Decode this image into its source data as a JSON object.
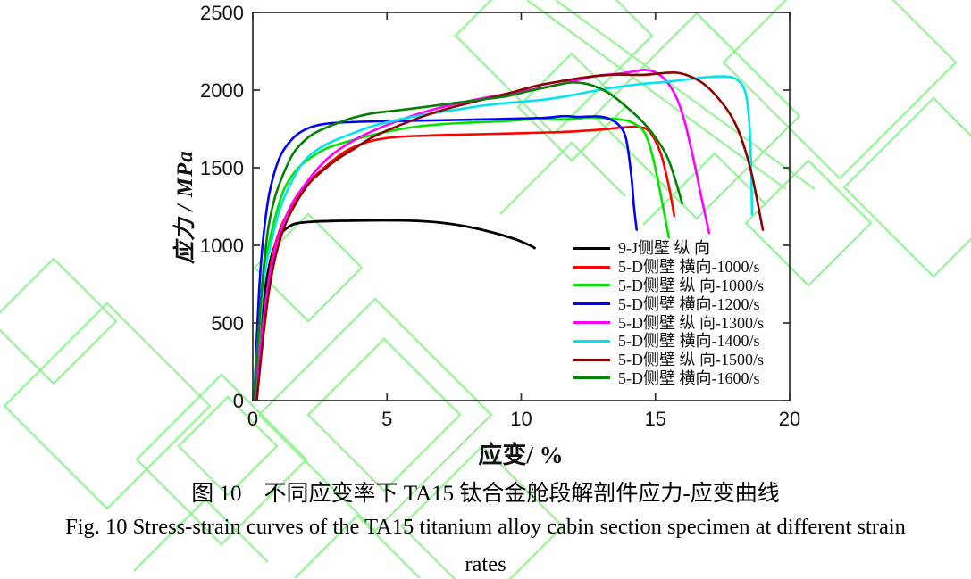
{
  "figure": {
    "caption_zh": "图 10　不同应变率下 TA15 钛合金舱段解剖件应力-应变曲线",
    "caption_en_lines": [
      "Fig. 10 Stress-strain curves of the TA15 titanium alloy cabin section specimen at different strain",
      "rates"
    ]
  },
  "watermark": {
    "color": "#8ff08f"
  },
  "chart_data": {
    "type": "line",
    "title": "",
    "xlabel": "应变/ %",
    "ylabel": "应力 / MPa",
    "xlim": [
      0,
      20
    ],
    "ylim": [
      0,
      2500
    ],
    "x_ticks": [
      "0",
      "5",
      "10",
      "15",
      "20"
    ],
    "y_ticks": [
      "0",
      "500",
      "1000",
      "1500",
      "2000",
      "2500"
    ],
    "grid": false,
    "legend_position": "inside-lower-right",
    "series": [
      {
        "name": "9-J侧壁 纵 向",
        "color": "#000000",
        "points": [
          [
            0.1,
            0
          ],
          [
            0.2,
            180
          ],
          [
            0.35,
            520
          ],
          [
            0.5,
            760
          ],
          [
            0.65,
            900
          ],
          [
            0.85,
            1010
          ],
          [
            1.05,
            1075
          ],
          [
            1.3,
            1115
          ],
          [
            1.6,
            1140
          ],
          [
            2.2,
            1152
          ],
          [
            3,
            1157
          ],
          [
            4,
            1160
          ],
          [
            5,
            1161
          ],
          [
            6,
            1158
          ],
          [
            7,
            1146
          ],
          [
            8,
            1120
          ],
          [
            9,
            1080
          ],
          [
            9.8,
            1038
          ],
          [
            10.3,
            1002
          ],
          [
            10.5,
            983
          ]
        ]
      },
      {
        "name": "5-D侧壁 横向-1000/s",
        "color": "#ff0000",
        "points": [
          [
            0.1,
            0
          ],
          [
            0.3,
            380
          ],
          [
            0.55,
            720
          ],
          [
            0.75,
            950
          ],
          [
            1.1,
            1140
          ],
          [
            1.5,
            1260
          ],
          [
            1.9,
            1370
          ],
          [
            2.3,
            1445
          ],
          [
            2.8,
            1520
          ],
          [
            3.4,
            1600
          ],
          [
            4,
            1650
          ],
          [
            4.6,
            1680
          ],
          [
            5.4,
            1698
          ],
          [
            6.5,
            1707
          ],
          [
            8,
            1714
          ],
          [
            9.5,
            1720
          ],
          [
            11,
            1727
          ],
          [
            12,
            1734
          ],
          [
            13,
            1746
          ],
          [
            13.8,
            1760
          ],
          [
            14.4,
            1762
          ],
          [
            14.8,
            1728
          ],
          [
            15.2,
            1590
          ],
          [
            15.5,
            1380
          ],
          [
            15.7,
            1190
          ]
        ]
      },
      {
        "name": "5-D侧壁 纵 向-1000/s",
        "color": "#00e400",
        "points": [
          [
            0.05,
            0
          ],
          [
            0.25,
            450
          ],
          [
            0.45,
            850
          ],
          [
            0.6,
            1010
          ],
          [
            0.85,
            1190
          ],
          [
            1.15,
            1355
          ],
          [
            1.55,
            1470
          ],
          [
            2,
            1545
          ],
          [
            2.7,
            1620
          ],
          [
            3.4,
            1662
          ],
          [
            4.2,
            1700
          ],
          [
            5,
            1732
          ],
          [
            6,
            1762
          ],
          [
            7,
            1780
          ],
          [
            8,
            1790
          ],
          [
            9,
            1797
          ],
          [
            10,
            1808
          ],
          [
            10.6,
            1820
          ],
          [
            11.2,
            1812
          ],
          [
            12,
            1815
          ],
          [
            12.6,
            1825
          ],
          [
            13.2,
            1818
          ],
          [
            13.8,
            1808
          ],
          [
            14.2,
            1785
          ],
          [
            14.6,
            1725
          ],
          [
            14.9,
            1570
          ],
          [
            15.2,
            1320
          ],
          [
            15.5,
            1050
          ]
        ]
      },
      {
        "name": "5-D侧壁 横向-1200/s",
        "color": "#0000ff",
        "points": [
          [
            0.05,
            0
          ],
          [
            0.15,
            400
          ],
          [
            0.25,
            750
          ],
          [
            0.38,
            1030
          ],
          [
            0.55,
            1270
          ],
          [
            0.7,
            1400
          ],
          [
            0.9,
            1520
          ],
          [
            1.1,
            1600
          ],
          [
            1.4,
            1672
          ],
          [
            1.7,
            1720
          ],
          [
            2.1,
            1757
          ],
          [
            2.6,
            1780
          ],
          [
            3.2,
            1790
          ],
          [
            4,
            1796
          ],
          [
            5,
            1800
          ],
          [
            6,
            1803
          ],
          [
            7,
            1806
          ],
          [
            8,
            1809
          ],
          [
            9,
            1813
          ],
          [
            10,
            1817
          ],
          [
            10.9,
            1822
          ],
          [
            11.6,
            1832
          ],
          [
            12.2,
            1827
          ],
          [
            12.8,
            1831
          ],
          [
            13.2,
            1820
          ],
          [
            13.6,
            1780
          ],
          [
            13.9,
            1690
          ],
          [
            14.1,
            1450
          ],
          [
            14.2,
            1250
          ],
          [
            14.3,
            1100
          ]
        ]
      },
      {
        "name": "5-D侧壁 纵 向-1300/s",
        "color": "#ff00ff",
        "points": [
          [
            0.1,
            0
          ],
          [
            0.3,
            380
          ],
          [
            0.55,
            720
          ],
          [
            0.8,
            960
          ],
          [
            1.1,
            1130
          ],
          [
            1.5,
            1280
          ],
          [
            2,
            1405
          ],
          [
            2.5,
            1510
          ],
          [
            3,
            1590
          ],
          [
            3.6,
            1660
          ],
          [
            4.2,
            1715
          ],
          [
            5,
            1775
          ],
          [
            6,
            1838
          ],
          [
            7,
            1888
          ],
          [
            8,
            1928
          ],
          [
            9,
            1962
          ],
          [
            10,
            1992
          ],
          [
            11,
            2022
          ],
          [
            12,
            2060
          ],
          [
            12.8,
            2092
          ],
          [
            13.6,
            2105
          ],
          [
            14.1,
            2118
          ],
          [
            14.6,
            2130
          ],
          [
            15,
            2115
          ],
          [
            15.4,
            2060
          ],
          [
            15.8,
            1945
          ],
          [
            16.1,
            1790
          ],
          [
            16.4,
            1570
          ],
          [
            16.7,
            1320
          ],
          [
            17,
            1080
          ]
        ]
      },
      {
        "name": "5-D侧壁 横向-1400/s",
        "color": "#00e4ee",
        "points": [
          [
            0.05,
            0
          ],
          [
            0.2,
            400
          ],
          [
            0.45,
            820
          ],
          [
            0.7,
            1030
          ],
          [
            1,
            1230
          ],
          [
            1.4,
            1395
          ],
          [
            1.9,
            1540
          ],
          [
            2.4,
            1615
          ],
          [
            3,
            1672
          ],
          [
            3.7,
            1720
          ],
          [
            4.5,
            1770
          ],
          [
            5.5,
            1812
          ],
          [
            6.5,
            1845
          ],
          [
            7.5,
            1872
          ],
          [
            8.5,
            1898
          ],
          [
            9.5,
            1918
          ],
          [
            10.5,
            1932
          ],
          [
            11.5,
            1955
          ],
          [
            12.5,
            1988
          ],
          [
            13.5,
            2018
          ],
          [
            14.5,
            2040
          ],
          [
            15.5,
            2055
          ],
          [
            16.3,
            2072
          ],
          [
            17,
            2085
          ],
          [
            17.6,
            2088
          ],
          [
            18,
            2072
          ],
          [
            18.3,
            2010
          ],
          [
            18.45,
            1880
          ],
          [
            18.55,
            1600
          ],
          [
            18.6,
            1200
          ]
        ]
      },
      {
        "name": "5-D侧壁 纵 向-1500/s",
        "color": "#8b0000",
        "points": [
          [
            0.15,
            0
          ],
          [
            0.35,
            350
          ],
          [
            0.6,
            700
          ],
          [
            0.85,
            930
          ],
          [
            1.2,
            1130
          ],
          [
            1.6,
            1270
          ],
          [
            2.1,
            1400
          ],
          [
            2.6,
            1480
          ],
          [
            3.2,
            1560
          ],
          [
            3.8,
            1625
          ],
          [
            4.5,
            1700
          ],
          [
            5.5,
            1775
          ],
          [
            6.5,
            1840
          ],
          [
            7.5,
            1892
          ],
          [
            8.5,
            1935
          ],
          [
            9.5,
            1978
          ],
          [
            10.5,
            2025
          ],
          [
            11.5,
            2058
          ],
          [
            12.5,
            2085
          ],
          [
            13.5,
            2100
          ],
          [
            14.5,
            2098
          ],
          [
            15.3,
            2110
          ],
          [
            15.8,
            2112
          ],
          [
            16.3,
            2088
          ],
          [
            16.8,
            2040
          ],
          [
            17.3,
            1955
          ],
          [
            17.8,
            1840
          ],
          [
            18.2,
            1690
          ],
          [
            18.6,
            1450
          ],
          [
            19,
            1100
          ]
        ]
      },
      {
        "name": "5-D侧壁 横向-1600/s",
        "color": "#068006",
        "points": [
          [
            0.05,
            0
          ],
          [
            0.2,
            400
          ],
          [
            0.35,
            750
          ],
          [
            0.55,
            1080
          ],
          [
            0.75,
            1260
          ],
          [
            1,
            1400
          ],
          [
            1.5,
            1590
          ],
          [
            2.1,
            1700
          ],
          [
            2.7,
            1755
          ],
          [
            3.2,
            1790
          ],
          [
            3.8,
            1825
          ],
          [
            4.5,
            1852
          ],
          [
            5.5,
            1872
          ],
          [
            6.5,
            1893
          ],
          [
            7.5,
            1916
          ],
          [
            8.5,
            1938
          ],
          [
            9.5,
            1962
          ],
          [
            10.3,
            1995
          ],
          [
            11,
            2020
          ],
          [
            11.8,
            2048
          ],
          [
            12.4,
            2042
          ],
          [
            13,
            2005
          ],
          [
            13.5,
            1952
          ],
          [
            14,
            1880
          ],
          [
            14.5,
            1800
          ],
          [
            15,
            1695
          ],
          [
            15.5,
            1545
          ],
          [
            16,
            1270
          ]
        ]
      }
    ]
  }
}
